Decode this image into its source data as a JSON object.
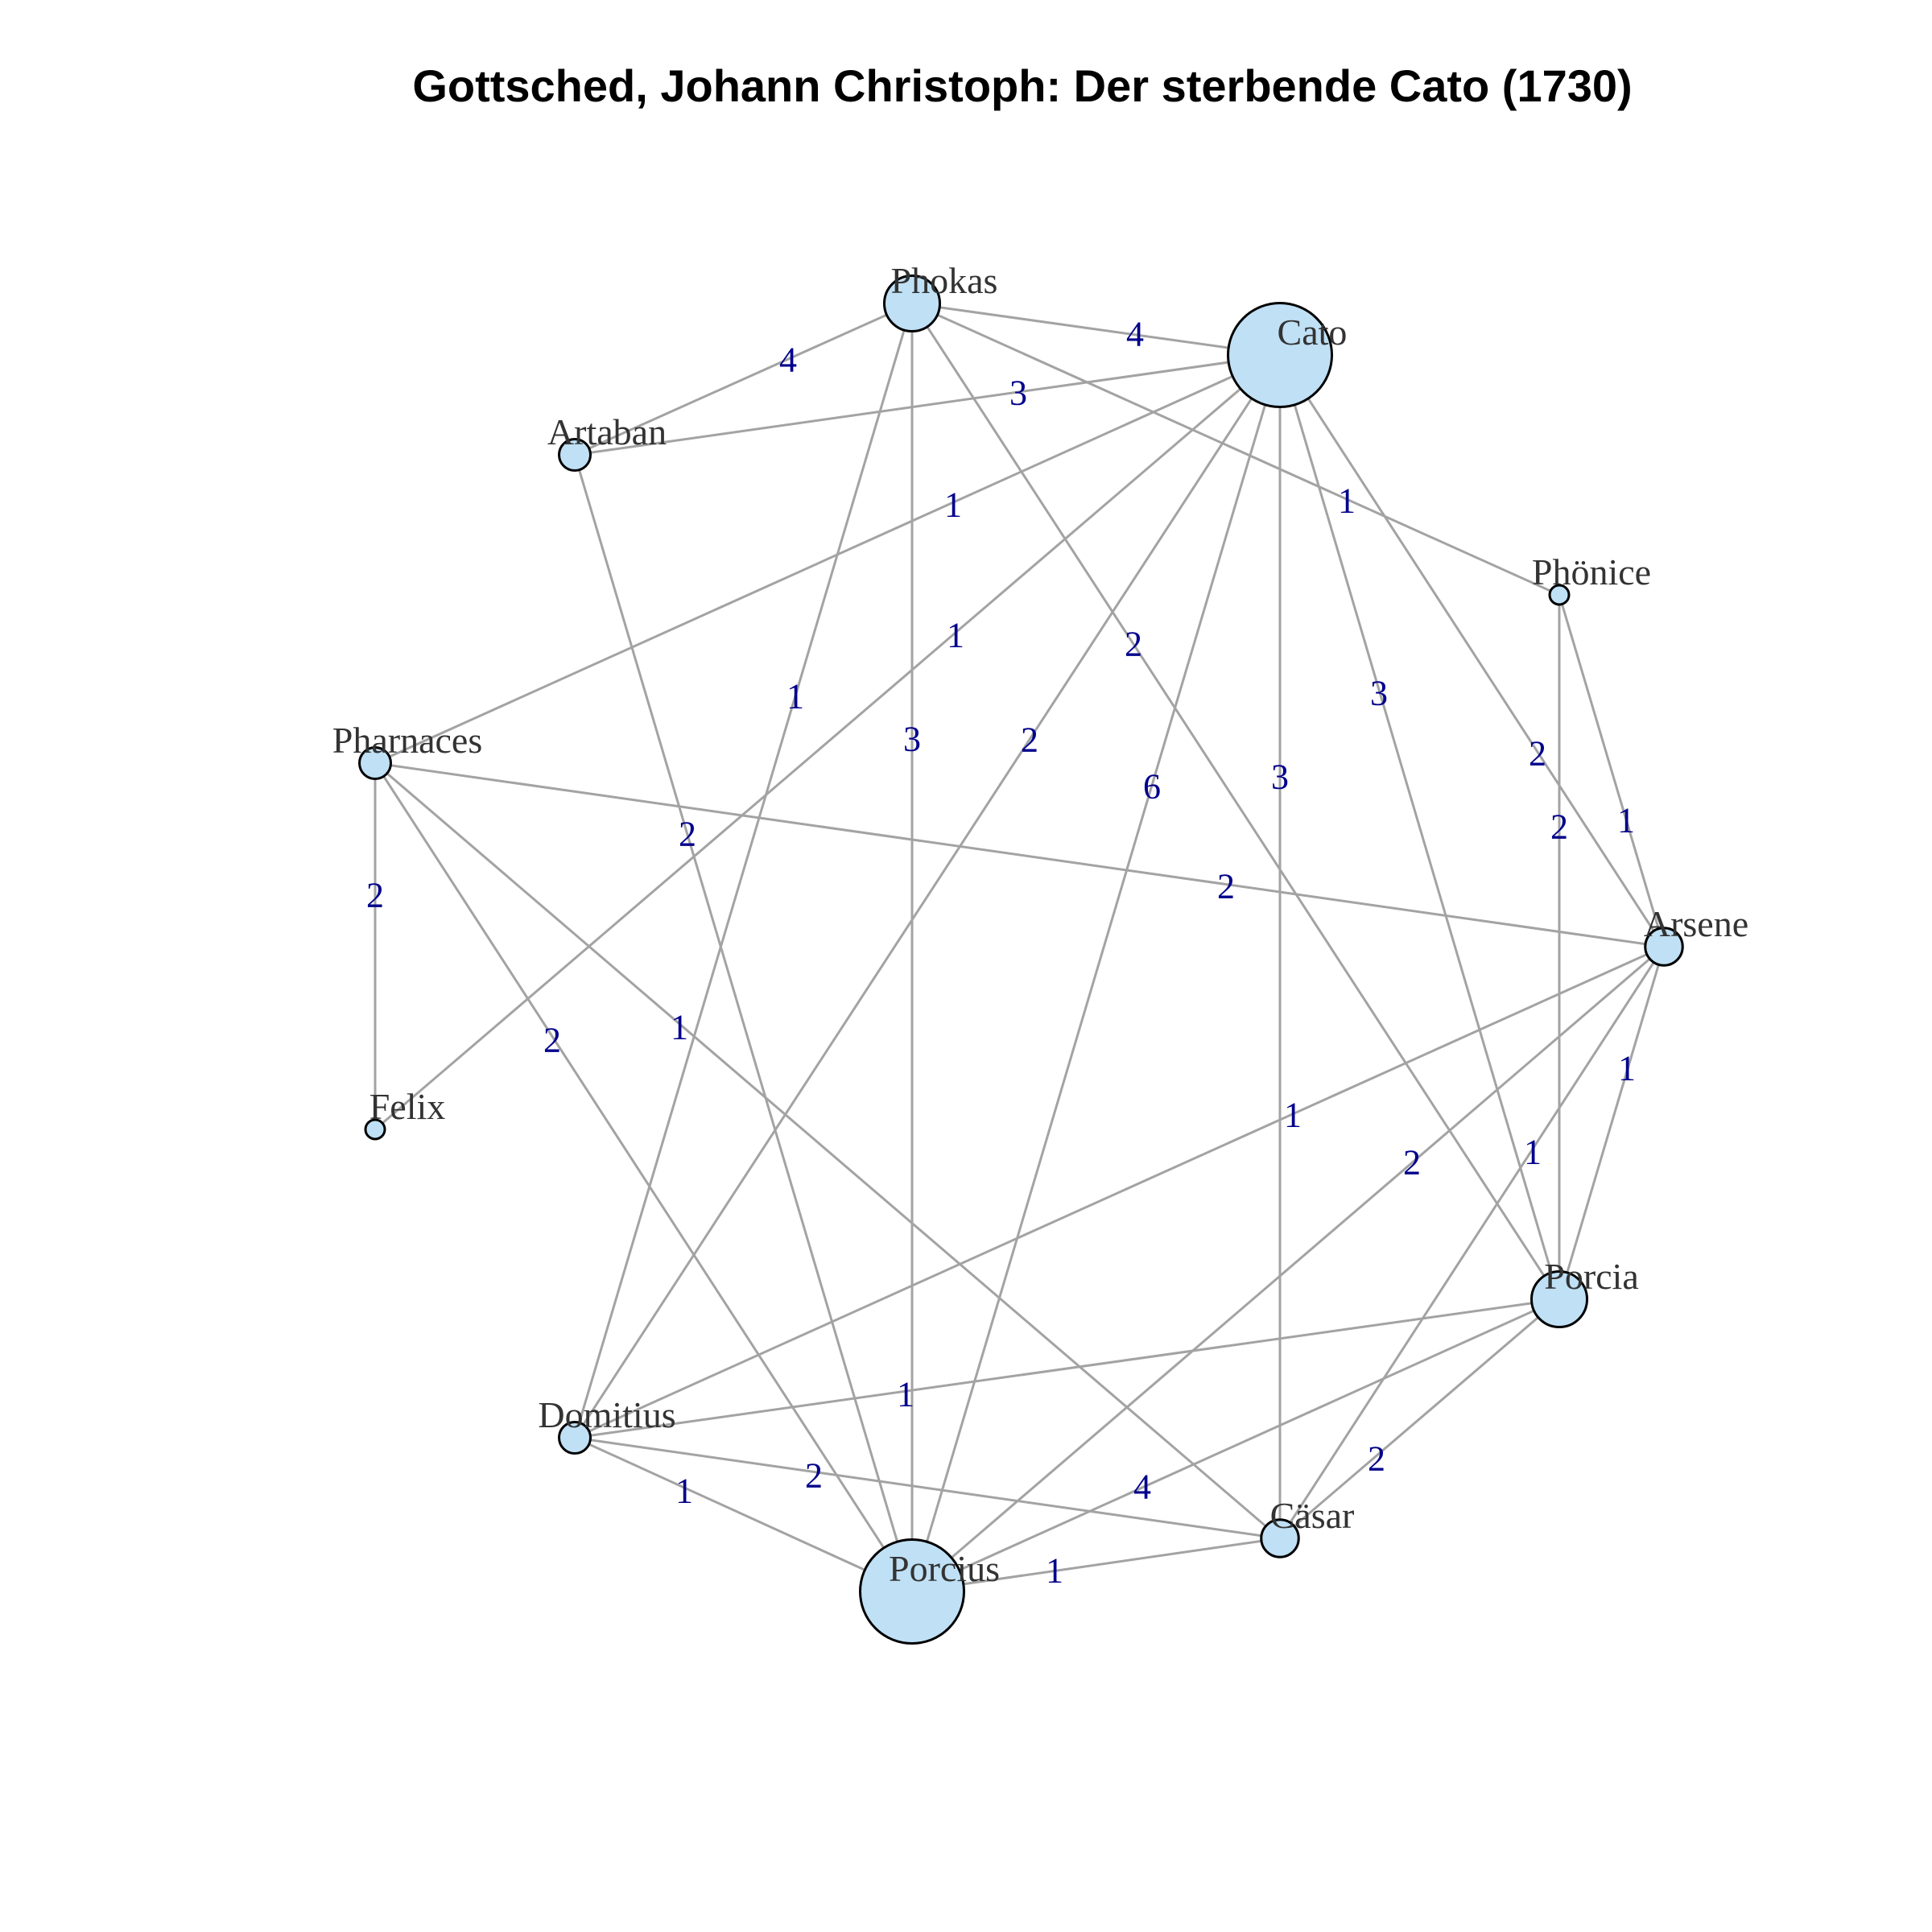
{
  "title": "Gottsched, Johann Christoph: Der sterbende Cato (1730)",
  "colors": {
    "node_fill": "#bfe0f5",
    "node_stroke": "#000000",
    "edge": "#a3a3a3",
    "edge_label": "#00008b",
    "node_label": "#333333"
  },
  "nodes": [
    {
      "id": "Phokas",
      "label": "Phokas",
      "size": 3
    },
    {
      "id": "Cato",
      "label": "Cato",
      "size": 7
    },
    {
      "id": "Artaban",
      "label": "Artaban",
      "size": 1
    },
    {
      "id": "Phonice",
      "label": "Phönice",
      "size": 0
    },
    {
      "id": "Pharnaces",
      "label": "Pharnaces",
      "size": 1
    },
    {
      "id": "Arsene",
      "label": "Arsene",
      "size": 1.5
    },
    {
      "id": "Felix",
      "label": "Felix",
      "size": 0
    },
    {
      "id": "Porcia",
      "label": "Porcia",
      "size": 3
    },
    {
      "id": "Domitius",
      "label": "Domitius",
      "size": 1
    },
    {
      "id": "Casar",
      "label": "Cäsar",
      "size": 1.5
    },
    {
      "id": "Porcius",
      "label": "Porcius",
      "size": 7
    }
  ],
  "edges": [
    {
      "source": "Phokas",
      "target": "Cato",
      "weight": "4"
    },
    {
      "source": "Phokas",
      "target": "Artaban",
      "weight": "4"
    },
    {
      "source": "Artaban",
      "target": "Cato",
      "weight": "3"
    },
    {
      "source": "Phokas",
      "target": "Phonice",
      "weight": "1"
    },
    {
      "source": "Phokas",
      "target": "Domitius",
      "weight": "1"
    },
    {
      "source": "Phokas",
      "target": "Porcius",
      "weight": "3"
    },
    {
      "source": "Phokas",
      "target": "Porcia",
      "weight": "2"
    },
    {
      "source": "Cato",
      "target": "Pharnaces",
      "weight": "1"
    },
    {
      "source": "Cato",
      "target": "Felix",
      "weight": "1"
    },
    {
      "source": "Cato",
      "target": "Domitius",
      "weight": "2"
    },
    {
      "source": "Cato",
      "target": "Porcius",
      "weight": "6"
    },
    {
      "source": "Cato",
      "target": "Casar",
      "weight": "3"
    },
    {
      "source": "Cato",
      "target": "Porcia",
      "weight": "3"
    },
    {
      "source": "Cato",
      "target": "Arsene",
      "weight": "2"
    },
    {
      "source": "Artaban",
      "target": "Porcius",
      "weight": "2"
    },
    {
      "source": "Phonice",
      "target": "Porcia",
      "weight": "2"
    },
    {
      "source": "Phonice",
      "target": "Arsene",
      "weight": "1"
    },
    {
      "source": "Pharnaces",
      "target": "Arsene",
      "weight": "2"
    },
    {
      "source": "Pharnaces",
      "target": "Felix",
      "weight": "2"
    },
    {
      "source": "Pharnaces",
      "target": "Porcius",
      "weight": "2"
    },
    {
      "source": "Pharnaces",
      "target": "Casar",
      "weight": "1"
    },
    {
      "source": "Arsene",
      "target": "Domitius",
      "weight": "1"
    },
    {
      "source": "Arsene",
      "target": "Porcius",
      "weight": "2"
    },
    {
      "source": "Arsene",
      "target": "Casar",
      "weight": "1"
    },
    {
      "source": "Arsene",
      "target": "Porcia",
      "weight": "1"
    },
    {
      "source": "Porcia",
      "target": "Domitius",
      "weight": "1"
    },
    {
      "source": "Porcia",
      "target": "Porcius",
      "weight": "4"
    },
    {
      "source": "Porcia",
      "target": "Casar",
      "weight": "2"
    },
    {
      "source": "Domitius",
      "target": "Casar",
      "weight": "2"
    },
    {
      "source": "Domitius",
      "target": "Porcius",
      "weight": "1"
    },
    {
      "source": "Porcius",
      "target": "Casar",
      "weight": "1"
    }
  ]
}
